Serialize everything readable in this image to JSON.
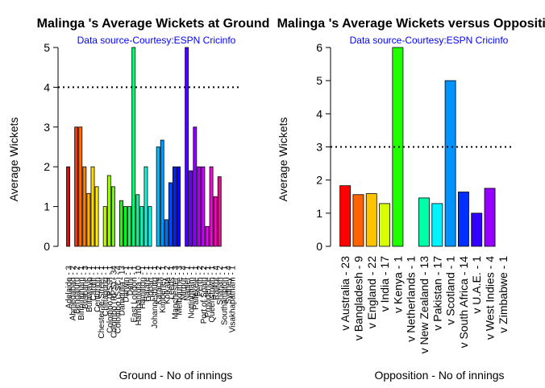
{
  "chart_data": [
    {
      "type": "bar",
      "title": "Malinga 's Average Wickets at Ground",
      "subtitle": "Data source-Courtesy:ESPN Cricinfo",
      "xlabel": "Ground - No of innings",
      "ylabel": "Average Wickets",
      "ylim": [
        0,
        5
      ],
      "yticks": [
        0,
        1,
        2,
        3,
        4,
        5
      ],
      "reference_line": 4,
      "categories": [
        "Adelaide - 3",
        "Ahmedabad - 2",
        "Bengaluru - 2",
        "Birmingham - 1",
        "Brisbane - 3",
        "Bulawayo - 1",
        "Cardiff - 1",
        "Centurion - 1",
        "Chester-le-Street - 1",
        "Chittagong - 1",
        "Colombo (PSS) - 1",
        "Colombo (RPS) - 34",
        "Colombo (SSC) - 4",
        "Dambulla - 13",
        "Darwin - 1",
        "Delhi - 1",
        "East London - 1",
        "Hambantota - 10",
        "Hamilton - 1",
        "Harare - 1",
        "Hobart - 1",
        "Johannesburg - 1",
        "Karachi - 2",
        "Kimberley - 1",
        "Kolkata - 2",
        "Leeds - 1",
        "Manchester - 3",
        "Melbourne - 3",
        "Mirpur - 4",
        "Napier - 1",
        "Nottingham - 1",
        "Pallekele - 1",
        "Perth - 2",
        "Port of Spain - 2",
        "Providence - 1",
        "Queenstown - 1",
        "Rajkot - 4",
        "Sharjah - 2",
        "Southampton - 1",
        "Sydney - 4",
        "Visakhapatnam - 1"
      ],
      "values": [
        2,
        0,
        3,
        3,
        2,
        1.33,
        2,
        1.5,
        0,
        1,
        1.78,
        1.5,
        0,
        1.15,
        1,
        1,
        5,
        1.3,
        1,
        2,
        1,
        0,
        2.5,
        2.67,
        0.67,
        1.6,
        2,
        2,
        0,
        5,
        1.9,
        3,
        2,
        2,
        0.5,
        2,
        1.25,
        1.75,
        0,
        0,
        0
      ],
      "colors": [
        "#ff0000",
        "#ff1a00",
        "#ff3300",
        "#ff6a00",
        "#ff8000",
        "#ffb000",
        "#ffd800",
        "#fff000",
        "#e8ff00",
        "#c4ff00",
        "#a0ff00",
        "#6cff00",
        "#3cff00",
        "#19ff00",
        "#00ff22",
        "#00ff55",
        "#00ff77",
        "#00ff9a",
        "#00ffbe",
        "#00ffdd",
        "#00fff6",
        "#00e5ff",
        "#00c0ff",
        "#0099ff",
        "#0070ff",
        "#0048ff",
        "#0022ff",
        "#0a00ff",
        "#2a00ff",
        "#4a00ff",
        "#6f00ff",
        "#9000ff",
        "#b300ff",
        "#d000ff",
        "#f000ff",
        "#ff00e0",
        "#ff00c0",
        "#ff0099",
        "#ff0077",
        "#ff0055",
        "#ff0033"
      ],
      "legend": "none",
      "grid": false
    },
    {
      "type": "bar",
      "title": "Malinga 's Average Wickets versus Opposition",
      "subtitle": "Data source-Courtesy:ESPN Cricinfo",
      "xlabel": "Opposition - No of innings",
      "ylabel": "Average Wickets",
      "ylim": [
        0,
        6
      ],
      "yticks": [
        0,
        1,
        2,
        3,
        4,
        5,
        6
      ],
      "reference_line": 3,
      "categories": [
        "v Australia - 23",
        "v Bangladesh - 9",
        "v England - 22",
        "v India - 17",
        "v Kenya - 1",
        "v Netherlands - 1",
        "v New Zealand - 13",
        "v Pakistan - 17",
        "v Scotland - 1",
        "v South Africa - 14",
        "v U.A.E. - 1",
        "v West Indies - 4",
        "v Zimbabwe - 1"
      ],
      "values": [
        1.83,
        1.56,
        1.59,
        1.29,
        6,
        0,
        1.46,
        1.29,
        5,
        1.64,
        1,
        1.75,
        0
      ],
      "colors": [
        "#ff0000",
        "#ff6200",
        "#ffc400",
        "#d8ff00",
        "#22ff00",
        "#00ff46",
        "#00ffa8",
        "#00f4ff",
        "#0092ff",
        "#0030ff",
        "#3300ff",
        "#9500ff",
        "#f700ff"
      ],
      "legend": "none",
      "grid": false
    }
  ]
}
